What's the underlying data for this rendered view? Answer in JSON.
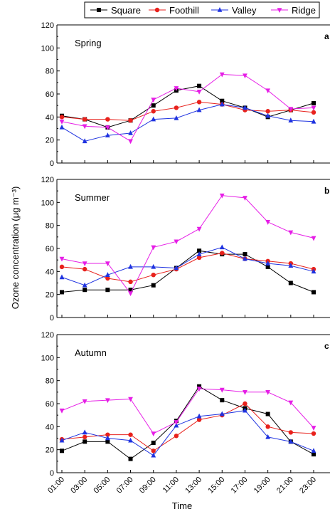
{
  "chart_data": {
    "type": "line",
    "x": [
      "01:00",
      "03:00",
      "05:00",
      "07:00",
      "09:00",
      "11:00",
      "13:00",
      "15:00",
      "17:00",
      "19:00",
      "21:00",
      "23:00"
    ],
    "xlabel": "Time",
    "ylabel": "Ozone concentration (μg m⁻³)",
    "ylim": [
      0,
      120
    ],
    "yticks": [
      0,
      20,
      40,
      60,
      80,
      100,
      120
    ],
    "legend": {
      "placement": "top",
      "entries": [
        {
          "name": "Square",
          "color": "#000000",
          "marker": "square"
        },
        {
          "name": "Foothill",
          "color": "#e8211c",
          "marker": "circle"
        },
        {
          "name": "Valley",
          "color": "#1f33e0",
          "marker": "triangle-up"
        },
        {
          "name": "Ridge",
          "color": "#e61ee6",
          "marker": "triangle-down"
        }
      ]
    },
    "panels": [
      {
        "season": "Spring",
        "letter": "a",
        "series": [
          {
            "name": "Square",
            "values": [
              41,
              38,
              31,
              37,
              50,
              63,
              67,
              54,
              48,
              40,
              46,
              52
            ]
          },
          {
            "name": "Foothill",
            "values": [
              40,
              38,
              38,
              37,
              45,
              48,
              53,
              51,
              46,
              45,
              46,
              44
            ]
          },
          {
            "name": "Valley",
            "values": [
              31,
              19,
              24,
              26,
              38,
              39,
              46,
              51,
              48,
              41,
              37,
              36
            ]
          },
          {
            "name": "Ridge",
            "values": [
              36,
              32,
              31,
              19,
              55,
              65,
              62,
              77,
              76,
              63,
              47,
              48
            ]
          }
        ]
      },
      {
        "season": "Summer",
        "letter": "b",
        "series": [
          {
            "name": "Square",
            "values": [
              22,
              24,
              24,
              24,
              28,
              43,
              58,
              55,
              55,
              44,
              30,
              22
            ]
          },
          {
            "name": "Foothill",
            "values": [
              44,
              42,
              34,
              31,
              37,
              42,
              52,
              56,
              51,
              49,
              47,
              42
            ]
          },
          {
            "name": "Valley",
            "values": [
              35,
              28,
              37,
              44,
              44,
              43,
              55,
              61,
              51,
              47,
              45,
              40
            ]
          },
          {
            "name": "Ridge",
            "values": [
              51,
              47,
              47,
              21,
              61,
              66,
              77,
              106,
              104,
              83,
              74,
              69
            ]
          }
        ]
      },
      {
        "season": "Autumn",
        "letter": "c",
        "series": [
          {
            "name": "Square",
            "values": [
              19,
              27,
              27,
              12,
              26,
              45,
              75,
              63,
              56,
              51,
              27,
              16
            ]
          },
          {
            "name": "Foothill",
            "values": [
              29,
              31,
              33,
              33,
              19,
              32,
              46,
              50,
              60,
              40,
              35,
              34
            ]
          },
          {
            "name": "Valley",
            "values": [
              28,
              35,
              30,
              28,
              15,
              41,
              49,
              51,
              54,
              31,
              27,
              19
            ]
          },
          {
            "name": "Ridge",
            "values": [
              54,
              62,
              63,
              64,
              34,
              44,
              73,
              72,
              70,
              70,
              61,
              39
            ]
          }
        ]
      }
    ]
  }
}
